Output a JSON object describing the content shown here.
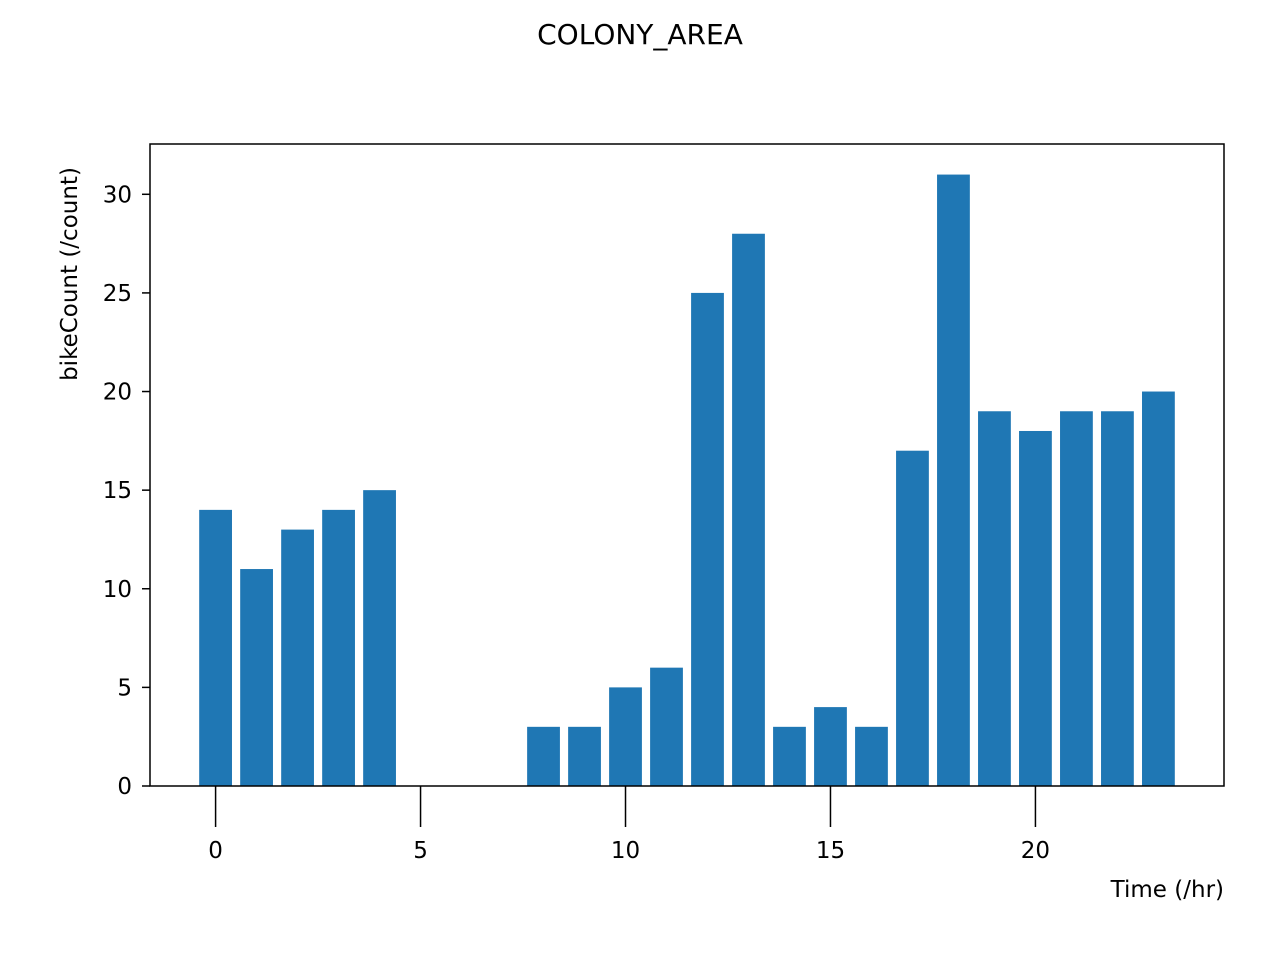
{
  "chart_data": {
    "type": "bar",
    "title": "COLONY_AREA",
    "xlabel": "Time (/hr)",
    "ylabel": "bikeCount (/count)",
    "x": [
      0,
      1,
      2,
      3,
      4,
      5,
      6,
      7,
      8,
      9,
      10,
      11,
      12,
      13,
      14,
      15,
      16,
      17,
      18,
      19,
      20,
      21,
      22,
      23
    ],
    "values": [
      14,
      11,
      13,
      14,
      15,
      0,
      0,
      0,
      3,
      3,
      5,
      6,
      25,
      28,
      3,
      4,
      3,
      17,
      31,
      19,
      18,
      19,
      19,
      20
    ],
    "xlim": [
      -1.6,
      24.6
    ],
    "ylim": [
      0,
      32.55
    ],
    "xticks": [
      0,
      5,
      10,
      15,
      20
    ],
    "yticks": [
      0,
      5,
      10,
      15,
      20,
      25,
      30
    ],
    "bar_color": "#1f77b4",
    "grid": false,
    "legend": "none"
  }
}
